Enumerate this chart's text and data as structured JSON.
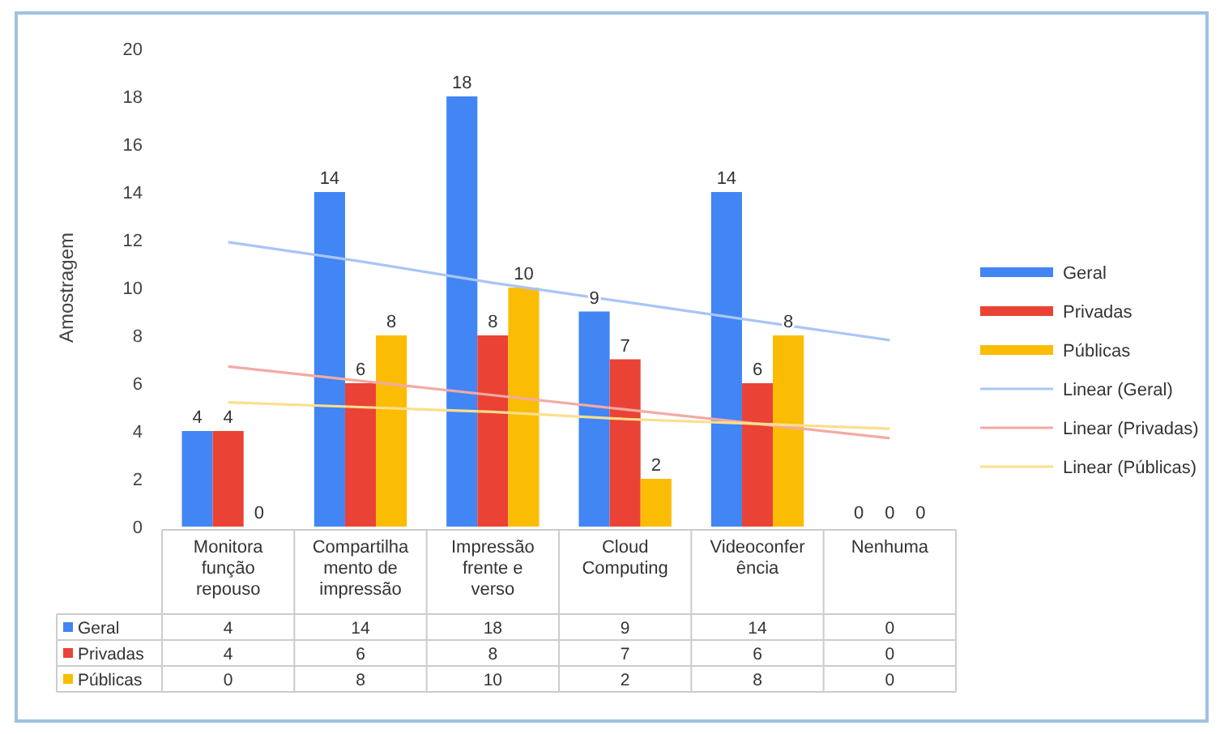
{
  "chart_data": {
    "type": "bar",
    "ylabel": "Amostragem",
    "categories": [
      "Monitora função repouso",
      "Compartilhamento de impressão",
      "Impressão frente e verso",
      "Cloud Computing",
      "Videoconferência",
      "Nenhuma"
    ],
    "series": [
      {
        "name": "Geral",
        "color": "#4285f4",
        "values": [
          4,
          14,
          18,
          9,
          14,
          0
        ],
        "value_labels": [
          "4",
          "14",
          "18",
          "9",
          "14",
          "0"
        ]
      },
      {
        "name": "Privadas",
        "color": "#ea4335",
        "values": [
          4,
          6,
          8,
          7,
          6,
          0
        ],
        "value_labels": [
          "4",
          "6",
          "8",
          "7",
          "6",
          "0"
        ]
      },
      {
        "name": "Públicas",
        "color": "#fbbc04",
        "values": [
          0,
          8,
          10,
          2,
          8,
          0
        ],
        "value_labels": [
          "0",
          "8",
          "10",
          "2",
          "8",
          "0"
        ]
      },
      {
        "name": "Linear (Geral)",
        "type": "line",
        "color": "#a9c5f7",
        "values": [
          11.9,
          11.1,
          10.2,
          9.4,
          8.6,
          7.8
        ]
      },
      {
        "name": "Linear (Privadas)",
        "type": "line",
        "color": "#f3aaa3",
        "values": [
          6.7,
          6.1,
          5.5,
          4.9,
          4.3,
          3.7
        ]
      },
      {
        "name": "Linear (Públicas)",
        "type": "line",
        "color": "#fcdf8c",
        "values": [
          5.2,
          5.0,
          4.8,
          4.5,
          4.3,
          4.1
        ]
      }
    ],
    "ylim": [
      0,
      20
    ],
    "yticks": [
      0,
      2,
      4,
      6,
      8,
      10,
      12,
      14,
      16,
      18,
      20
    ],
    "grid": false,
    "legend": "right"
  }
}
